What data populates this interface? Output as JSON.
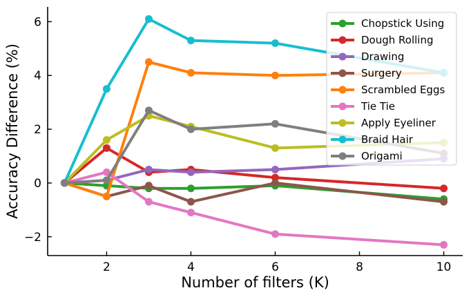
{
  "chart_data": {
    "type": "line",
    "title": "",
    "xlabel": "Number of filters (K)",
    "ylabel": "Accuracy Difference (%)",
    "x": [
      1,
      2,
      3,
      4,
      6,
      10
    ],
    "xticks": [
      2,
      4,
      6,
      8,
      10
    ],
    "xtick_labels": [
      "2",
      "4",
      "6",
      "8",
      "10"
    ],
    "yticks": [
      -2,
      0,
      2,
      4,
      6
    ],
    "ytick_labels": [
      "−2",
      "0",
      "2",
      "4",
      "6"
    ],
    "xlim": [
      0.6,
      10.45
    ],
    "ylim": [
      -2.7,
      6.55
    ],
    "legend_position": "top-right",
    "grid": false,
    "series": [
      {
        "name": "Chopstick Using",
        "color": "#2ca02c",
        "values": [
          0,
          -0.1,
          -0.2,
          -0.2,
          -0.1,
          -0.6
        ]
      },
      {
        "name": "Dough Rolling",
        "color": "#d62728",
        "values": [
          0,
          1.3,
          0.4,
          0.5,
          0.2,
          -0.2
        ]
      },
      {
        "name": "Drawing",
        "color": "#9467bd",
        "values": [
          0,
          0.1,
          0.5,
          0.4,
          0.5,
          0.9
        ]
      },
      {
        "name": "Surgery",
        "color": "#8c564b",
        "values": [
          0,
          -0.5,
          -0.1,
          -0.7,
          0.0,
          -0.7
        ]
      },
      {
        "name": "Scrambled Eggs",
        "color": "#ff7f0e",
        "values": [
          0,
          -0.5,
          4.5,
          4.1,
          4.0,
          4.1
        ]
      },
      {
        "name": "Tie Tie",
        "color": "#e377c2",
        "values": [
          0,
          0.4,
          -0.7,
          -1.1,
          -1.9,
          -2.3
        ]
      },
      {
        "name": "Apply Eyeliner",
        "color": "#bcbd22",
        "values": [
          0,
          1.6,
          2.5,
          2.1,
          1.3,
          1.5
        ]
      },
      {
        "name": "Braid Hair",
        "color": "#17becf",
        "values": [
          0,
          3.5,
          6.1,
          5.3,
          5.2,
          4.1
        ]
      },
      {
        "name": "Origami",
        "color": "#7f7f7f",
        "values": [
          0,
          0.1,
          2.7,
          2.0,
          2.2,
          1.1
        ]
      }
    ]
  }
}
